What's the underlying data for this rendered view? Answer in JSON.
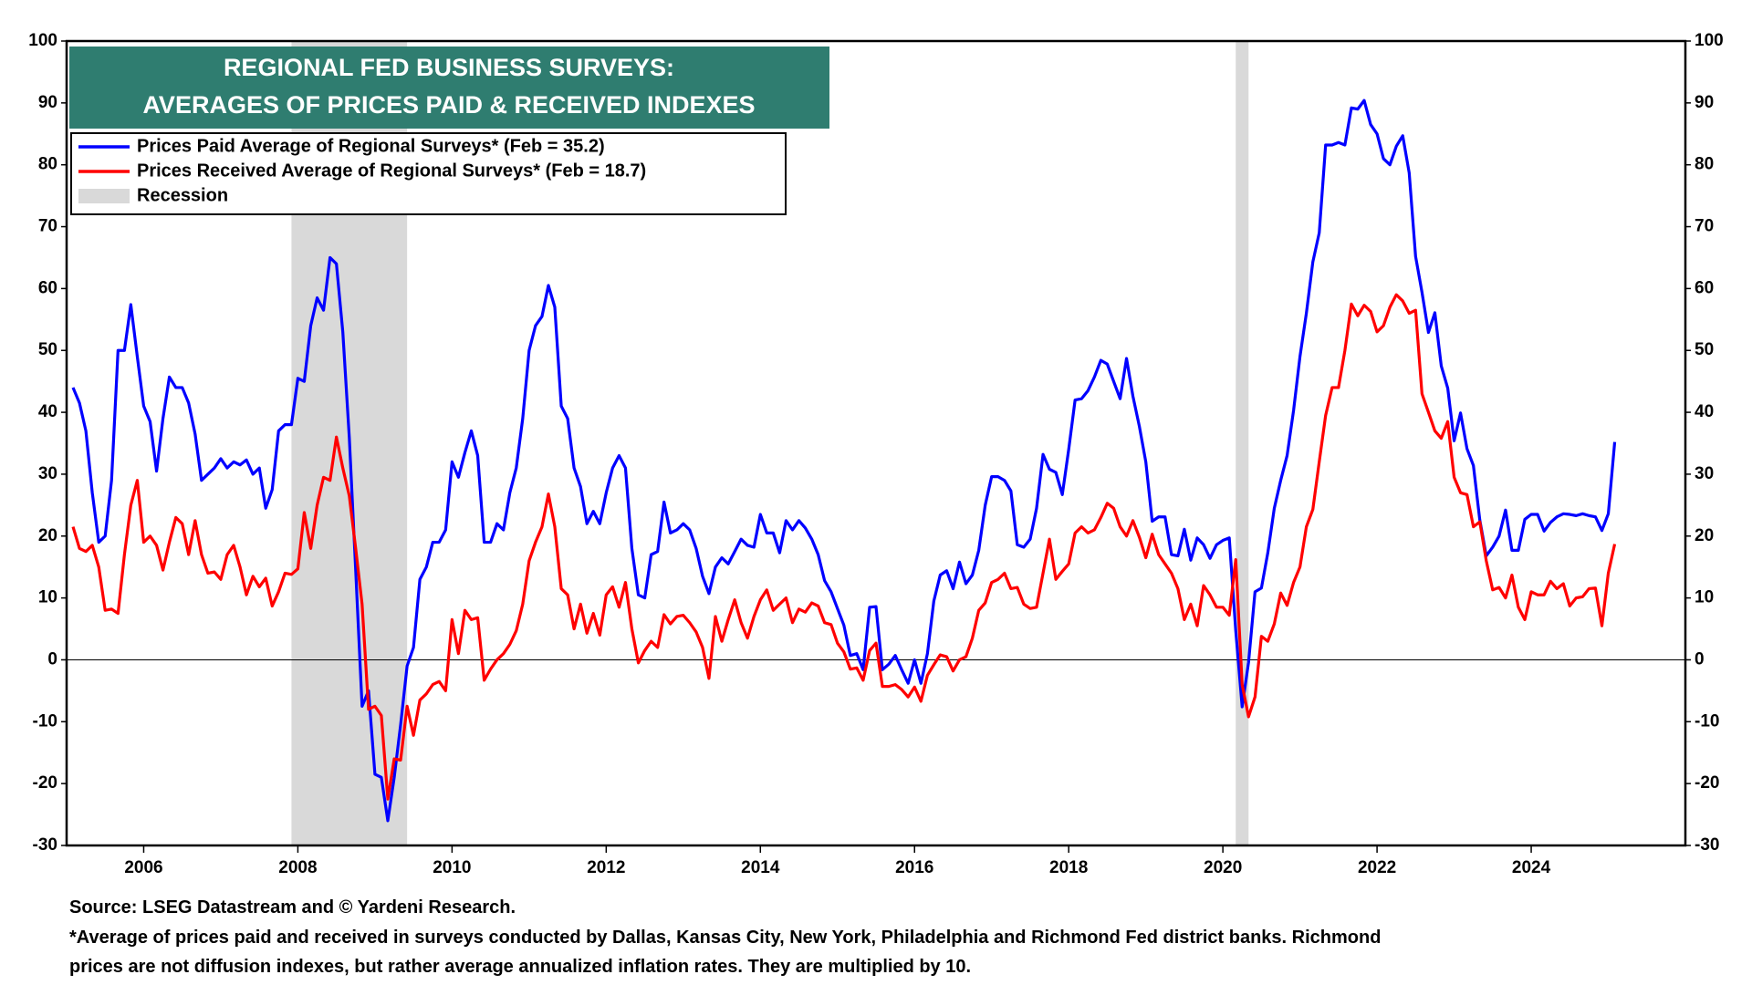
{
  "chart_data": {
    "type": "line",
    "title": [
      "REGIONAL FED BUSINESS SURVEYS:",
      "AVERAGES OF PRICES PAID & RECEIVED INDEXES"
    ],
    "source": "Source: LSEG Datastream and © Yardeni Research.",
    "notes": [
      "*Average of prices paid and received in surveys conducted by Dallas, Kansas City, New York, Philadelphia and Richmond Fed district banks. Richmond",
      "prices are not diffusion indexes, but rather average annualized inflation rates. They are multiplied by 10."
    ],
    "xlim": [
      2005,
      2026
    ],
    "xticks": [
      2006,
      2008,
      2010,
      2012,
      2014,
      2016,
      2018,
      2020,
      2022,
      2024
    ],
    "ylim": [
      -30,
      100
    ],
    "yticks": [
      -30,
      -20,
      -10,
      0,
      10,
      20,
      30,
      40,
      50,
      60,
      70,
      80,
      90,
      100
    ],
    "y2lim": [
      -30,
      100
    ],
    "y2ticks": [
      -30,
      -20,
      -10,
      0,
      10,
      20,
      30,
      40,
      50,
      60,
      70,
      80,
      90,
      100
    ],
    "grid": false,
    "legend": "top-left",
    "recession": {
      "name": "Recession",
      "color": "#d9d9d9",
      "spans": [
        [
          2007.917,
          2009.417
        ],
        [
          2020.167,
          2020.333
        ]
      ]
    },
    "x": [
      2005.083,
      2005.167,
      2005.25,
      2005.333,
      2005.417,
      2005.5,
      2005.583,
      2005.667,
      2005.75,
      2005.833,
      2005.917,
      2006,
      2006.083,
      2006.167,
      2006.25,
      2006.333,
      2006.417,
      2006.5,
      2006.583,
      2006.667,
      2006.75,
      2006.833,
      2006.917,
      2007,
      2007.083,
      2007.167,
      2007.25,
      2007.333,
      2007.417,
      2007.5,
      2007.583,
      2007.667,
      2007.75,
      2007.833,
      2007.917,
      2008,
      2008.083,
      2008.167,
      2008.25,
      2008.333,
      2008.417,
      2008.5,
      2008.583,
      2008.667,
      2008.75,
      2008.833,
      2008.917,
      2009,
      2009.083,
      2009.167,
      2009.25,
      2009.333,
      2009.417,
      2009.5,
      2009.583,
      2009.667,
      2009.75,
      2009.833,
      2009.917,
      2010,
      2010.083,
      2010.167,
      2010.25,
      2010.333,
      2010.417,
      2010.5,
      2010.583,
      2010.667,
      2010.75,
      2010.833,
      2010.917,
      2011,
      2011.083,
      2011.167,
      2011.25,
      2011.333,
      2011.417,
      2011.5,
      2011.583,
      2011.667,
      2011.75,
      2011.833,
      2011.917,
      2012,
      2012.083,
      2012.167,
      2012.25,
      2012.333,
      2012.417,
      2012.5,
      2012.583,
      2012.667,
      2012.75,
      2012.833,
      2012.917,
      2013,
      2013.083,
      2013.167,
      2013.25,
      2013.333,
      2013.417,
      2013.5,
      2013.583,
      2013.667,
      2013.75,
      2013.833,
      2013.917,
      2014,
      2014.083,
      2014.167,
      2014.25,
      2014.333,
      2014.417,
      2014.5,
      2014.583,
      2014.667,
      2014.75,
      2014.833,
      2014.917,
      2015,
      2015.083,
      2015.167,
      2015.25,
      2015.333,
      2015.417,
      2015.5,
      2015.583,
      2015.667,
      2015.75,
      2015.833,
      2015.917,
      2016,
      2016.083,
      2016.167,
      2016.25,
      2016.333,
      2016.417,
      2016.5,
      2016.583,
      2016.667,
      2016.75,
      2016.833,
      2016.917,
      2017,
      2017.083,
      2017.167,
      2017.25,
      2017.333,
      2017.417,
      2017.5,
      2017.583,
      2017.667,
      2017.75,
      2017.833,
      2017.917,
      2018,
      2018.083,
      2018.167,
      2018.25,
      2018.333,
      2018.417,
      2018.5,
      2018.583,
      2018.667,
      2018.75,
      2018.833,
      2018.917,
      2019,
      2019.083,
      2019.167,
      2019.25,
      2019.333,
      2019.417,
      2019.5,
      2019.583,
      2019.667,
      2019.75,
      2019.833,
      2019.917,
      2020,
      2020.083,
      2020.167,
      2020.25,
      2020.333,
      2020.417,
      2020.5,
      2020.583,
      2020.667,
      2020.75,
      2020.833,
      2020.917,
      2021,
      2021.083,
      2021.167,
      2021.25,
      2021.333,
      2021.417,
      2021.5,
      2021.583,
      2021.667,
      2021.75,
      2021.833,
      2021.917,
      2022,
      2022.083,
      2022.167,
      2022.25,
      2022.333,
      2022.417,
      2022.5,
      2022.583,
      2022.667,
      2022.75,
      2022.833,
      2022.917,
      2023,
      2023.083,
      2023.167,
      2023.25,
      2023.333,
      2023.417,
      2023.5,
      2023.583,
      2023.667,
      2023.75,
      2023.833,
      2023.917,
      2024,
      2024.083,
      2024.167,
      2024.25,
      2024.333,
      2024.417,
      2024.5,
      2024.583,
      2024.667,
      2024.75,
      2024.833,
      2024.917,
      2025,
      2025.083
    ],
    "series": [
      {
        "name": "Prices Paid Average of Regional Surveys* (Feb = 35.2)",
        "color": "#0000ff",
        "values": [
          44,
          41.5,
          37,
          27,
          19,
          20,
          29,
          50,
          50,
          57.4,
          49,
          41,
          38.5,
          30.5,
          39,
          45.7,
          44,
          44,
          41.5,
          36.5,
          29,
          30,
          31,
          32.5,
          31,
          32,
          31.5,
          32.3,
          30,
          31,
          24.5,
          27.5,
          37,
          38,
          38,
          45.5,
          45,
          54,
          58.5,
          56.5,
          65,
          64,
          53,
          36,
          14.5,
          -7.5,
          -5,
          -18.5,
          -19,
          -26,
          -19,
          -10.5,
          -1,
          2,
          13,
          15,
          19,
          19,
          21,
          32,
          29.5,
          33.5,
          37,
          33,
          19,
          19,
          22,
          21,
          27,
          31,
          39,
          50,
          54,
          55.5,
          60.5,
          57,
          41,
          39,
          31,
          28,
          22,
          24,
          22,
          27,
          31,
          33,
          31,
          18,
          10.5,
          10,
          17,
          17.5,
          25.5,
          20.5,
          21,
          22,
          21,
          18,
          13.5,
          10.7,
          15,
          16.5,
          15.5,
          17.5,
          19.5,
          18.5,
          18.2,
          23.5,
          20.5,
          20.5,
          17.3,
          22.5,
          21,
          22.5,
          21.3,
          19.5,
          17,
          12.8,
          11,
          8.3,
          5.6,
          0.7,
          1,
          -1.6,
          8.5,
          8.6,
          -1.6,
          -0.7,
          0.7,
          -1.6,
          -3.8,
          0,
          -3.8,
          1,
          9.5,
          13.7,
          14.4,
          11.5,
          15.8,
          12.3,
          13.7,
          17.7,
          25,
          29.6,
          29.6,
          29,
          27.3,
          18.6,
          18.2,
          19.5,
          24.5,
          33.2,
          30.8,
          30.3,
          26.7,
          34,
          42,
          42.2,
          43.5,
          45.7,
          48.4,
          47.8,
          45,
          42.2,
          48.7,
          42.6,
          37.7,
          32,
          22.4,
          23.1,
          23.1,
          17,
          16.8,
          21.1,
          16.1,
          19.7,
          18.6,
          16.4,
          18.6,
          19.3,
          19.7,
          4.7,
          -7.6,
          -0.4,
          11,
          11.6,
          17.3,
          24.5,
          29,
          33,
          40.3,
          49,
          56,
          64.3,
          69,
          83.2,
          83.2,
          83.6,
          83.2,
          89.2,
          89,
          90.4,
          86.5,
          85,
          81,
          80,
          83,
          84.7,
          78.7,
          65.2,
          59.4,
          52.9,
          56.1,
          47.5,
          43.9,
          35.4,
          39.9,
          34.1,
          31.4,
          22.6,
          16.8,
          18.2,
          20,
          24.2,
          17.7,
          17.7,
          22.7,
          23.5,
          23.5,
          20.8,
          22.2,
          23.1,
          23.6,
          23.5,
          23.3,
          23.6,
          23.3,
          23.1,
          20.9,
          23.6,
          35.2
        ]
      },
      {
        "name": "Prices Received Average of Regional Surveys* (Feb = 18.7)",
        "color": "#ff0000",
        "values": [
          21.5,
          18,
          17.5,
          18.5,
          15,
          8,
          8.2,
          7.5,
          17,
          25,
          29,
          19,
          20,
          18.5,
          14.5,
          19,
          23,
          22,
          17,
          22.5,
          17,
          14,
          14.2,
          13,
          17,
          18.5,
          15,
          10.5,
          13.5,
          11.8,
          13.2,
          8.7,
          11,
          14,
          13.8,
          14.7,
          23.8,
          18,
          25,
          29.5,
          29,
          36,
          31,
          26.5,
          18,
          9,
          -8,
          -7.5,
          -9,
          -22.5,
          -16,
          -16.2,
          -7.5,
          -12.2,
          -6.5,
          -5.5,
          -4,
          -3.5,
          -5,
          6.5,
          1,
          8,
          6.5,
          6.8,
          -3.3,
          -1.5,
          0,
          1,
          2.5,
          4.7,
          9,
          16,
          19,
          21.5,
          26.8,
          21.5,
          11.5,
          10.5,
          5,
          9,
          4.3,
          7.5,
          4,
          10.5,
          11.8,
          8.5,
          12.5,
          5,
          -0.5,
          1.5,
          3,
          2,
          7.3,
          5.8,
          7,
          7.2,
          6,
          4.5,
          2,
          -3,
          7,
          3,
          6.5,
          9.7,
          6,
          3.5,
          7,
          9.7,
          11.3,
          8,
          9,
          10,
          6,
          8.2,
          7.7,
          9.2,
          8.7,
          6,
          5.7,
          2.7,
          1.3,
          -1.5,
          -1.3,
          -3.3,
          1.5,
          2.7,
          -4.3,
          -4.3,
          -4,
          -4.8,
          -6,
          -4.4,
          -6.7,
          -2.5,
          -0.8,
          0.8,
          0.5,
          -1.8,
          0,
          0.5,
          3.5,
          8,
          9.2,
          12.5,
          13,
          14,
          11.5,
          11.7,
          9,
          8.3,
          8.5,
          14,
          19.5,
          13,
          14.3,
          15.5,
          20.5,
          21.5,
          20.5,
          21,
          23,
          25.3,
          24.5,
          21.5,
          20,
          22.5,
          19.8,
          16.5,
          20.3,
          17,
          15.5,
          14,
          11.5,
          6.5,
          9,
          5.5,
          12,
          10.5,
          8.5,
          8.5,
          7.2,
          16.2,
          -4,
          -9.2,
          -6,
          3.8,
          3,
          5.8,
          10.8,
          8.8,
          12.5,
          15,
          21.5,
          24.3,
          32,
          39.5,
          44,
          44,
          50,
          57.5,
          55.6,
          57.3,
          56.3,
          53,
          54,
          57,
          59,
          58,
          56,
          56.5,
          43,
          40,
          37,
          35.8,
          38.5,
          29.5,
          27,
          26.7,
          21.5,
          22.3,
          16,
          11.3,
          11.7,
          10,
          13.7,
          8.5,
          6.5,
          11,
          10.5,
          10.5,
          12.7,
          11.5,
          12.3,
          8.7,
          10,
          10.2,
          11.5,
          11.6,
          5.5,
          14,
          18.7
        ]
      }
    ]
  }
}
